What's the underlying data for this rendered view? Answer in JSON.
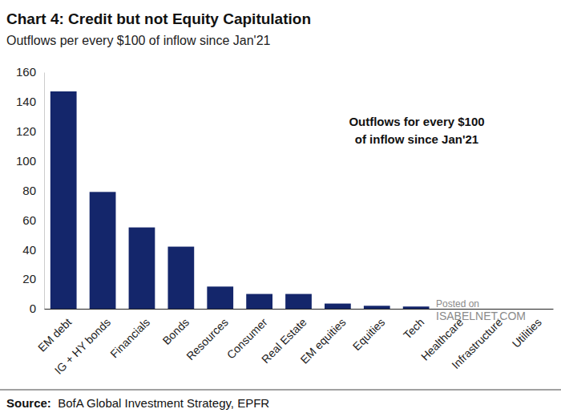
{
  "chart_data": {
    "type": "bar",
    "title": "Chart 4: Credit but not Equity Capitulation",
    "subtitle": "Outflows per every $100 of inflow since Jan'21",
    "annotations": [
      "Outflows for every $100",
      "of inflow since Jan'21"
    ],
    "watermark": [
      "Posted on",
      "ISABELNET.COM"
    ],
    "source": "Source:  BofA Global Investment Strategy, EPFR",
    "categories": [
      "EM debt",
      "IG + HY bonds",
      "Financials",
      "Bonds",
      "Resources",
      "Consumer",
      "Real Estate",
      "EM equities",
      "Equities",
      "Tech",
      "Healthcare",
      "Infrastructure",
      "Utilities"
    ],
    "values": [
      147,
      79,
      55,
      42,
      15,
      10,
      10,
      3.5,
      2,
      1.5,
      0,
      0,
      0
    ],
    "color": "#14266b",
    "ylim": [
      0,
      160
    ],
    "yticks": [
      0,
      20,
      40,
      60,
      80,
      100,
      120,
      140,
      160
    ],
    "grid": false
  }
}
